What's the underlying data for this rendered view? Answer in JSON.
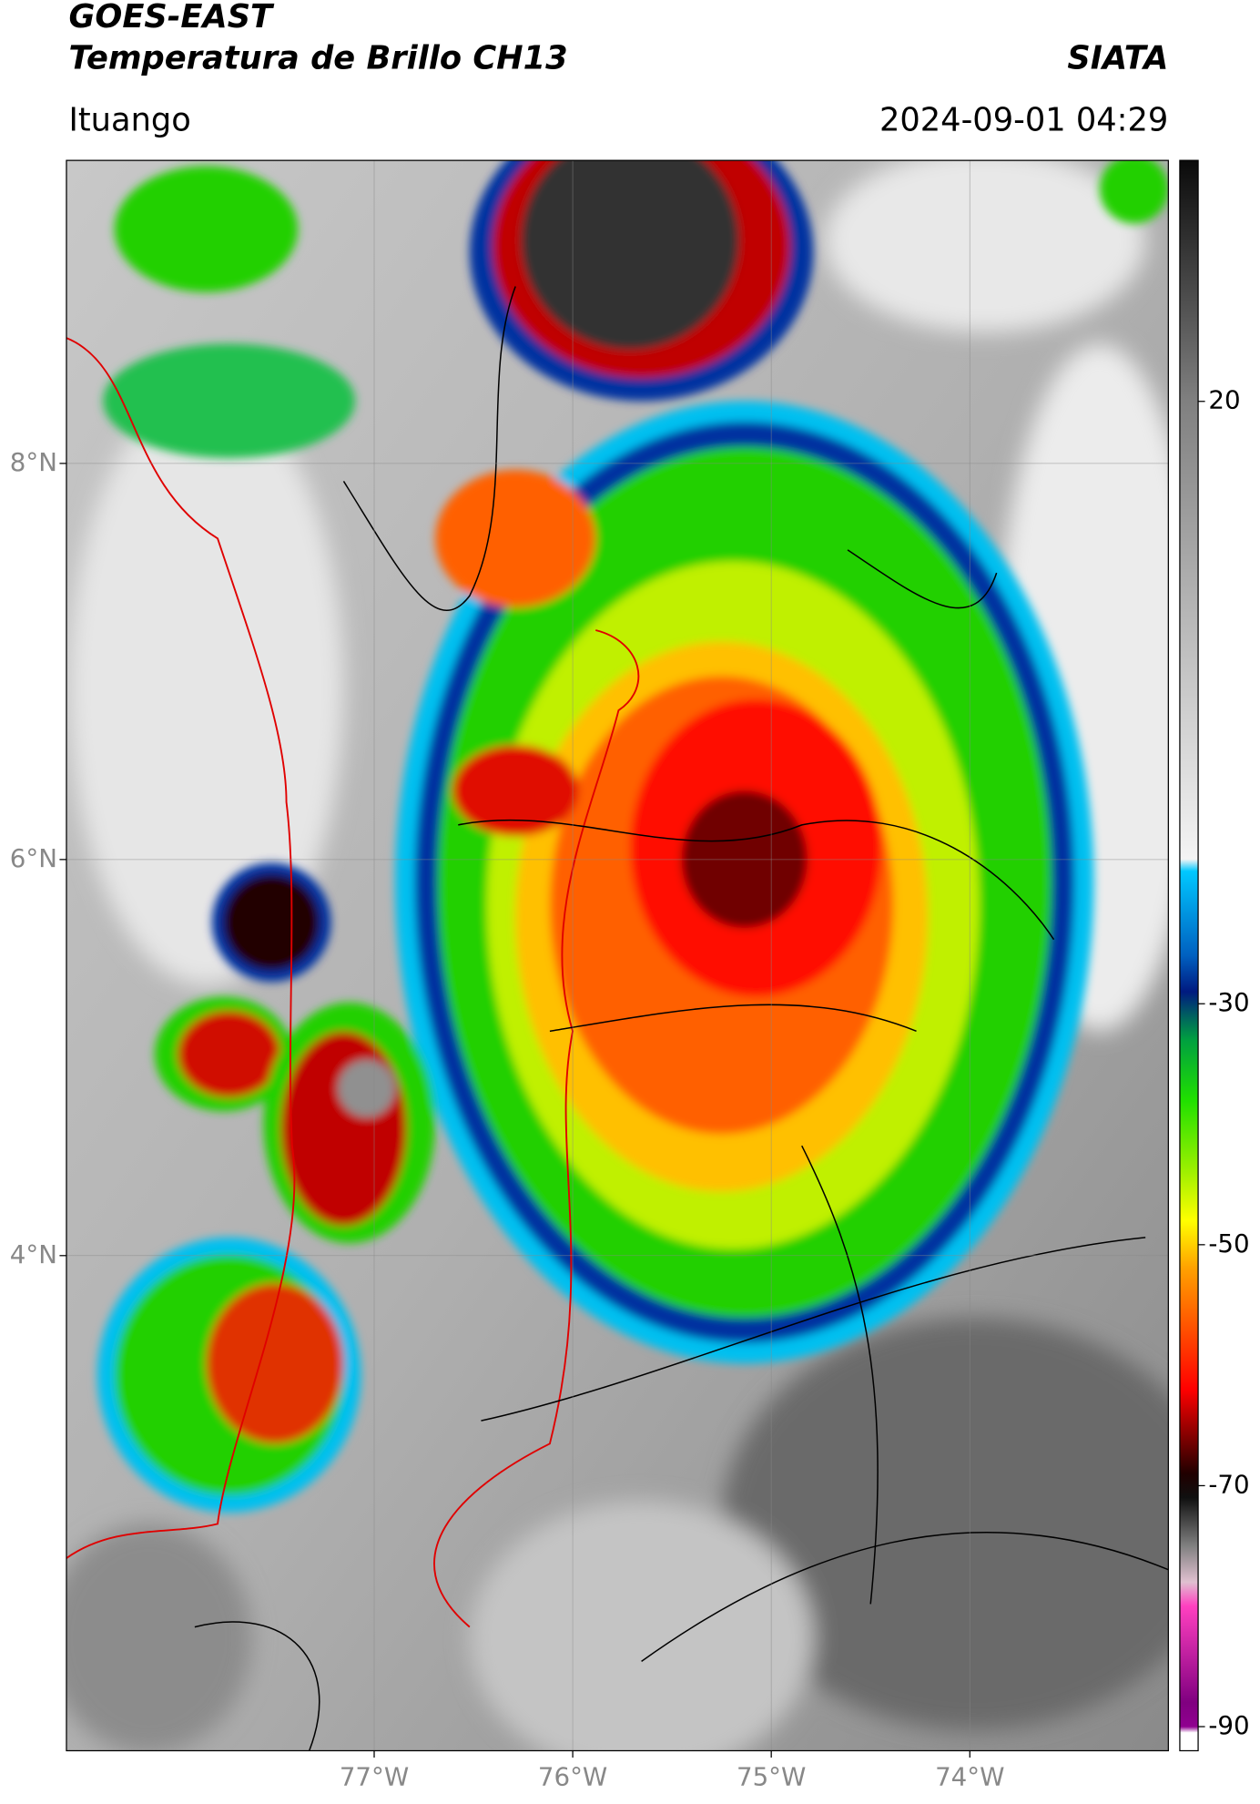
{
  "header": {
    "title": "GOES-EAST",
    "subtitle": "Temperatura de Brillo CH13",
    "institution": "SIATA",
    "location": "Ituango",
    "datetime": "2024-09-01 04:29"
  },
  "map": {
    "xlim": [
      -78.55,
      -73
    ],
    "ylim": [
      1.5,
      9.53
    ],
    "xticks": [
      {
        "value": -77,
        "label": "77°W"
      },
      {
        "value": -76,
        "label": "76°W"
      },
      {
        "value": -75,
        "label": "75°W"
      },
      {
        "value": -74,
        "label": "74°W"
      }
    ],
    "yticks": [
      {
        "value": 8,
        "label": "8°N"
      },
      {
        "value": 6,
        "label": "6°N"
      },
      {
        "value": 4,
        "label": "4°N"
      }
    ],
    "grid": true
  },
  "colorbar": {
    "lim": [
      -92,
      40
    ],
    "ticks": [
      20,
      -30,
      -50,
      -70,
      -90
    ],
    "stops": [
      {
        "value": 40,
        "color": "#0a0a0a"
      },
      {
        "value": 20,
        "color": "#808080"
      },
      {
        "value": -18,
        "color": "#f4f4f4"
      },
      {
        "value": -19,
        "color": "#00c8ff"
      },
      {
        "value": -26,
        "color": "#0060c0"
      },
      {
        "value": -29,
        "color": "#001a80"
      },
      {
        "value": -31,
        "color": "#006060"
      },
      {
        "value": -33,
        "color": "#00a040"
      },
      {
        "value": -38,
        "color": "#20e000"
      },
      {
        "value": -44,
        "color": "#a0f000"
      },
      {
        "value": -48,
        "color": "#ffff00"
      },
      {
        "value": -52,
        "color": "#ffa000"
      },
      {
        "value": -58,
        "color": "#ff4000"
      },
      {
        "value": -62,
        "color": "#ff0000"
      },
      {
        "value": -66,
        "color": "#800000"
      },
      {
        "value": -69,
        "color": "#200000"
      },
      {
        "value": -71,
        "color": "#101010"
      },
      {
        "value": -75,
        "color": "#808080"
      },
      {
        "value": -78,
        "color": "#e0c0d0"
      },
      {
        "value": -80,
        "color": "#ff40c0"
      },
      {
        "value": -88,
        "color": "#800080"
      },
      {
        "value": -90,
        "color": "#900090"
      },
      {
        "value": -90.5,
        "color": "#ffffff"
      },
      {
        "value": -92,
        "color": "#ffffff"
      }
    ]
  }
}
